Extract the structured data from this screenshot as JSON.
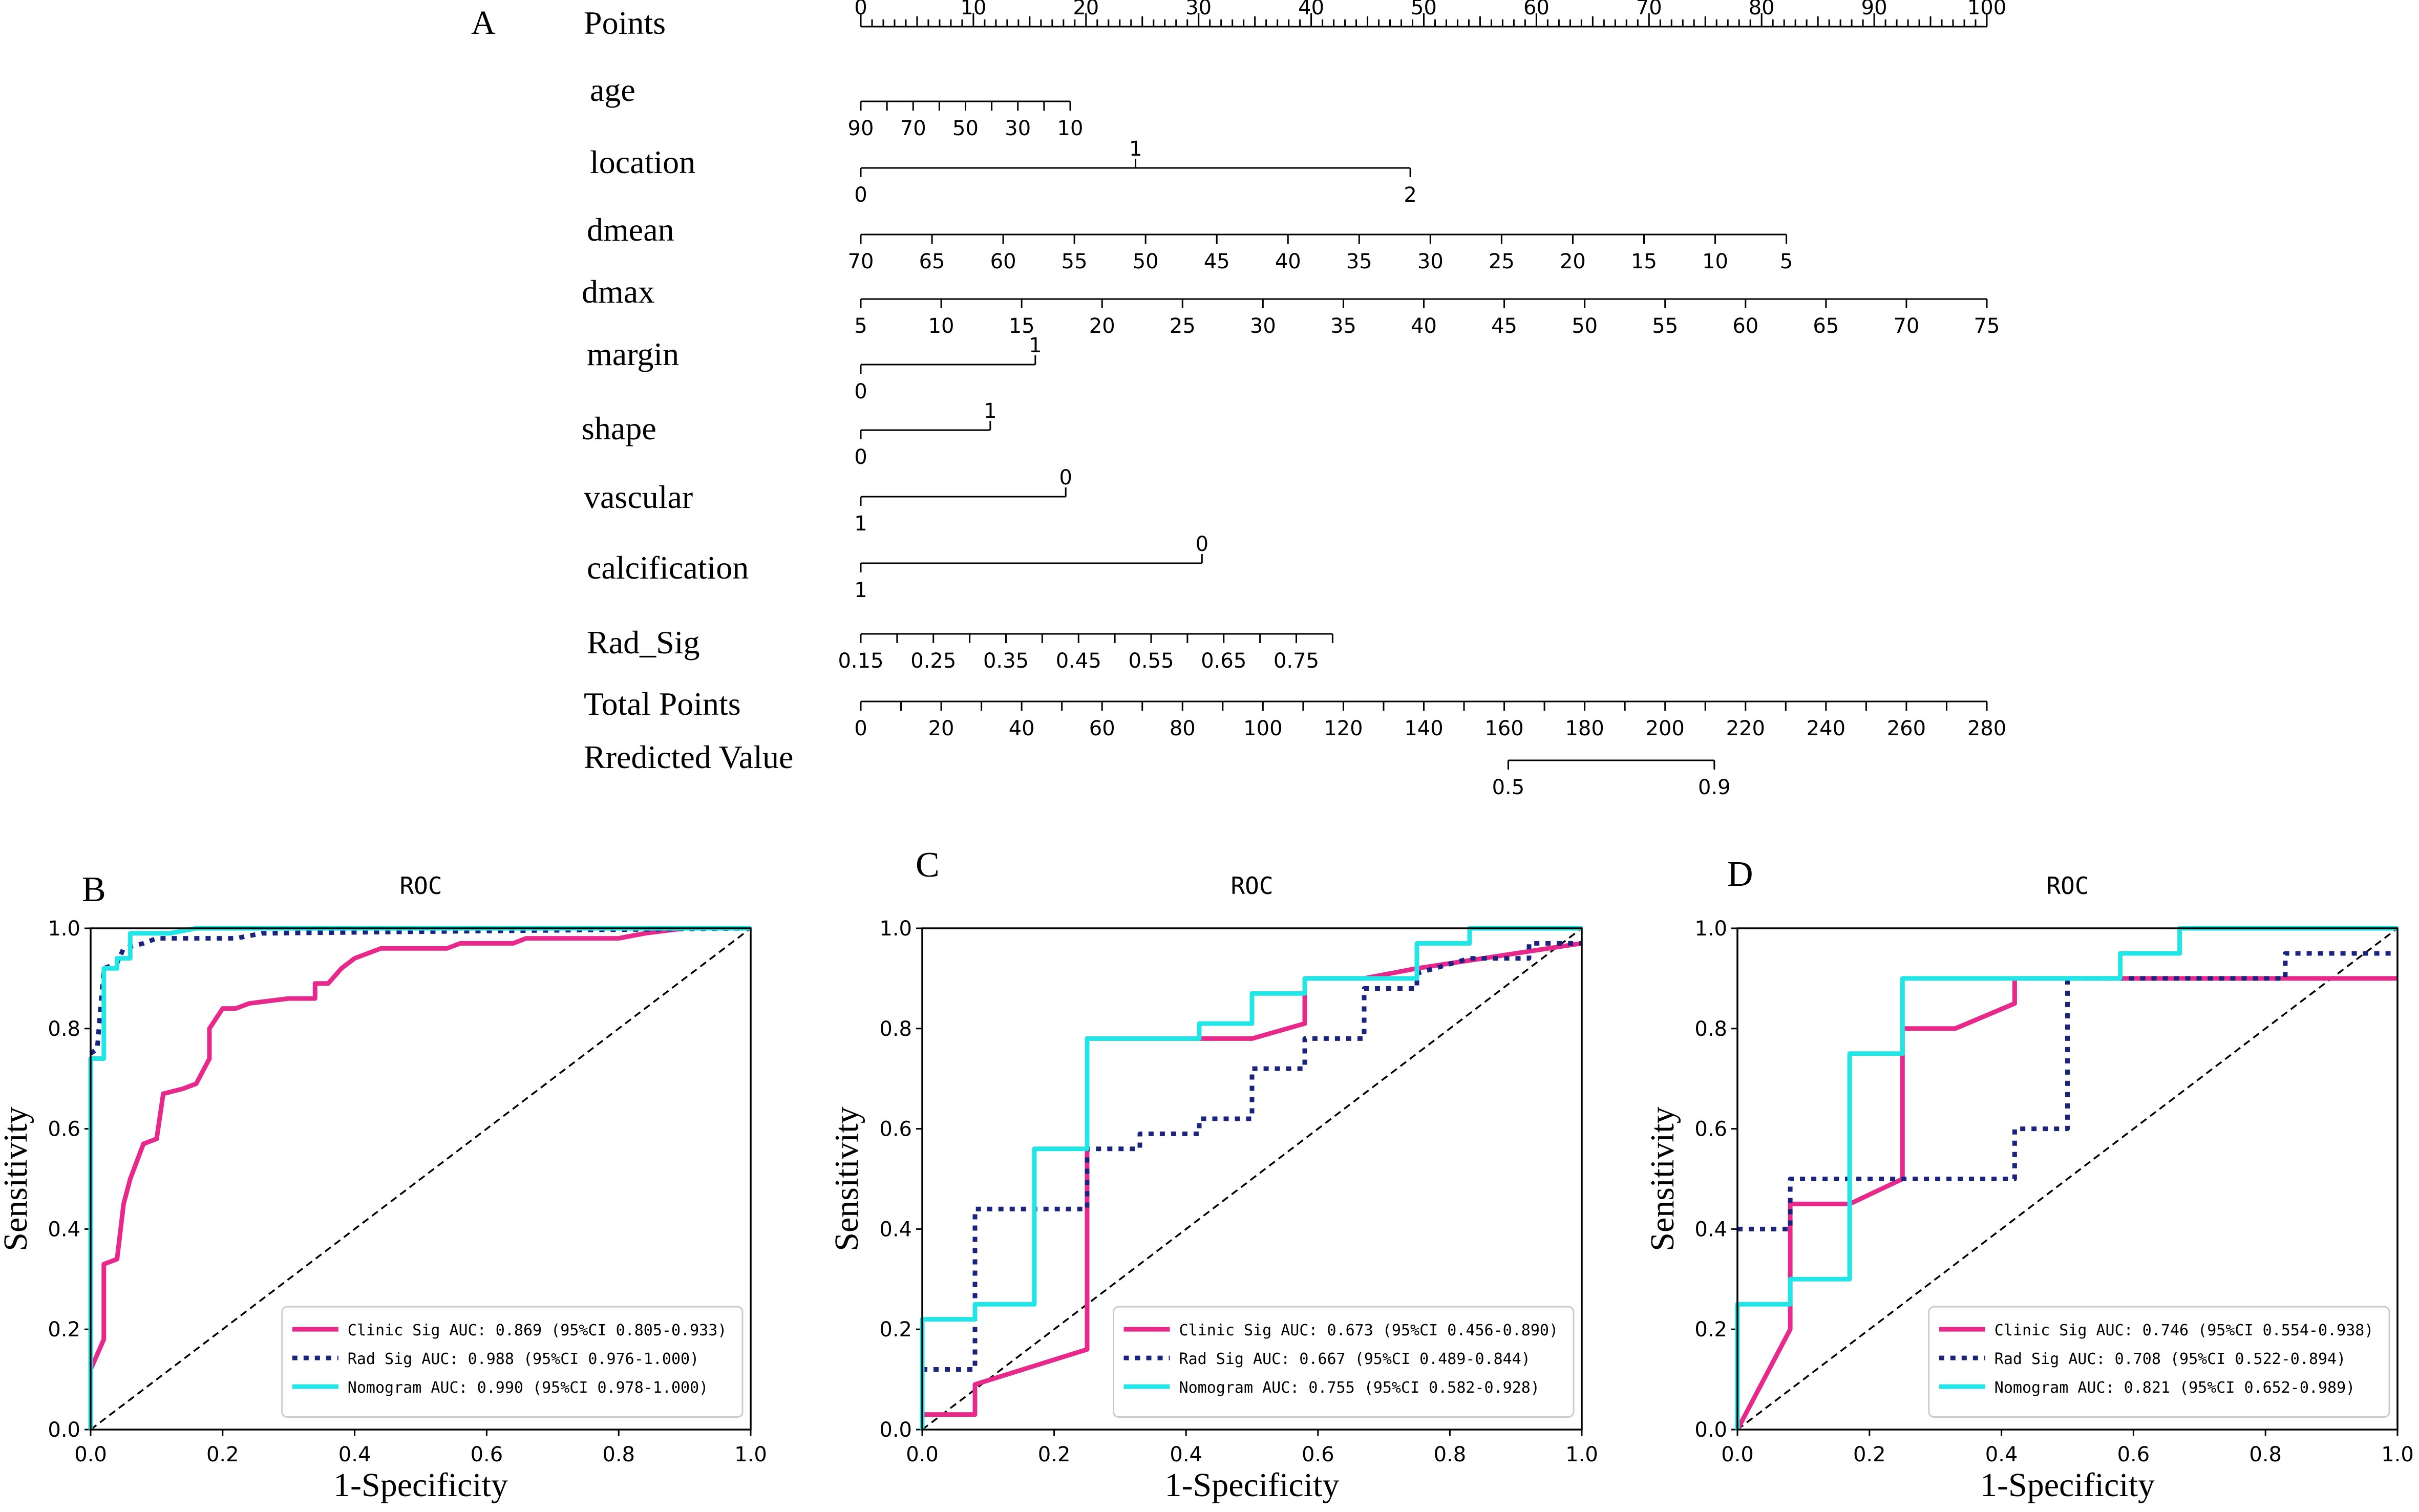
{
  "chart_data": [
    {
      "type": "nomogram",
      "panel_label": "A",
      "rows": [
        {
          "name": "Points",
          "kind": "scale",
          "min": 0,
          "max": 100,
          "major_step": 10,
          "minor_step": 1,
          "labels_above": true,
          "label_values": [
            0,
            10,
            20,
            30,
            40,
            50,
            60,
            70,
            80,
            90,
            100
          ],
          "label_texts": [
            "0",
            "10",
            "20",
            "30",
            "40",
            "50",
            "60",
            "70",
            "80",
            "90",
            "100"
          ]
        },
        {
          "name": "age",
          "kind": "scale",
          "start_points": 0,
          "end_points": 18.6,
          "value_start": 90,
          "value_end": 10,
          "label_values": [
            90,
            70,
            50,
            30,
            10
          ],
          "label_texts": [
            "90",
            "70",
            "50",
            "30",
            "10"
          ],
          "tick_values": [
            90,
            80,
            70,
            60,
            50,
            40,
            30,
            20,
            10
          ]
        },
        {
          "name": "location",
          "kind": "categorical",
          "levels": [
            {
              "label": "0",
              "points": 0,
              "pos": "below"
            },
            {
              "label": "1",
              "points": 24.4,
              "pos": "above"
            },
            {
              "label": "2",
              "points": 48.8,
              "pos": "below"
            }
          ]
        },
        {
          "name": "dmean",
          "kind": "scale",
          "start_points": 0,
          "end_points": 82.2,
          "value_start": 70,
          "value_end": 5,
          "label_values": [
            70,
            65,
            60,
            55,
            50,
            45,
            40,
            35,
            30,
            25,
            20,
            15,
            10,
            5
          ],
          "label_texts": [
            "70",
            "65",
            "60",
            "55",
            "50",
            "45",
            "40",
            "35",
            "30",
            "25",
            "20",
            "15",
            "10",
            "5"
          ]
        },
        {
          "name": "dmax",
          "kind": "scale",
          "start_points": 0,
          "end_points": 100,
          "value_start": 5,
          "value_end": 75,
          "label_values": [
            5,
            10,
            15,
            20,
            25,
            30,
            35,
            40,
            45,
            50,
            55,
            60,
            65,
            70,
            75
          ],
          "label_texts": [
            "5",
            "10",
            "15",
            "20",
            "25",
            "30",
            "35",
            "40",
            "45",
            "50",
            "55",
            "60",
            "65",
            "70",
            "75"
          ]
        },
        {
          "name": "margin",
          "kind": "categorical",
          "levels": [
            {
              "label": "0",
              "points": 0,
              "pos": "below"
            },
            {
              "label": "1",
              "points": 15.5,
              "pos": "above"
            }
          ]
        },
        {
          "name": "shape",
          "kind": "categorical",
          "levels": [
            {
              "label": "0",
              "points": 0,
              "pos": "below"
            },
            {
              "label": "1",
              "points": 11.5,
              "pos": "above"
            }
          ]
        },
        {
          "name": "vascular",
          "kind": "categorical",
          "levels": [
            {
              "label": "1",
              "points": 0,
              "pos": "below"
            },
            {
              "label": "0",
              "points": 18.2,
              "pos": "above"
            }
          ]
        },
        {
          "name": "calcification",
          "kind": "categorical",
          "levels": [
            {
              "label": "1",
              "points": 0,
              "pos": "below"
            },
            {
              "label": "0",
              "points": 30.3,
              "pos": "above"
            }
          ]
        },
        {
          "name": "Rad_Sig",
          "kind": "scale",
          "start_points": 0,
          "end_points": 41.9,
          "value_start": 0.15,
          "value_end": 0.8,
          "label_values": [
            0.15,
            0.25,
            0.35,
            0.45,
            0.55,
            0.65,
            0.75
          ],
          "label_texts": [
            "0.15",
            "0.25",
            "0.35",
            "0.45",
            "0.55",
            "0.65",
            "0.75"
          ],
          "tick_values": [
            0.15,
            0.2,
            0.25,
            0.3,
            0.35,
            0.4,
            0.45,
            0.5,
            0.55,
            0.6,
            0.65,
            0.7,
            0.75,
            0.8
          ]
        },
        {
          "name": "Total Points",
          "kind": "scale",
          "start_points": 0,
          "end_points": 100,
          "value_start": 0,
          "value_end": 280,
          "label_values": [
            0,
            20,
            40,
            60,
            80,
            100,
            120,
            140,
            160,
            180,
            200,
            220,
            240,
            260,
            280
          ],
          "label_texts": [
            "0",
            "20",
            "40",
            "60",
            "80",
            "100",
            "120",
            "140",
            "160",
            "180",
            "200",
            "220",
            "240",
            "260",
            "280"
          ],
          "tick_values": [
            0,
            10,
            20,
            30,
            40,
            50,
            60,
            70,
            80,
            90,
            100,
            110,
            120,
            130,
            140,
            150,
            160,
            170,
            180,
            190,
            200,
            210,
            220,
            230,
            240,
            250,
            260,
            270,
            280
          ]
        },
        {
          "name": "Rredicted Value",
          "kind": "scale",
          "start_points": 57.5,
          "end_points": 75.8,
          "value_start": 0.5,
          "value_end": 0.9,
          "label_values": [
            0.5,
            0.9
          ],
          "label_texts": [
            "0.5",
            "0.9"
          ],
          "tick_values": [
            0.5,
            0.9
          ]
        }
      ]
    },
    {
      "type": "line",
      "panel_label": "B",
      "title": "ROC",
      "xlabel": "1-Specificity",
      "ylabel": "Sensitivity",
      "xlim": [
        0,
        1
      ],
      "ylim": [
        0,
        1
      ],
      "ticks": [
        0,
        0.2,
        0.4,
        0.6,
        0.8,
        1.0
      ],
      "tick_labels": [
        "0.0",
        "0.2",
        "0.4",
        "0.6",
        "0.8",
        "1.0"
      ],
      "series": [
        {
          "name": "Clinic Sig",
          "legend": "Clinic Sig AUC: 0.869 (95%CI 0.805-0.933)",
          "color": "#e8298c",
          "style": "solid",
          "points": [
            [
              0,
              0.12
            ],
            [
              0.01,
              0.15
            ],
            [
              0.02,
              0.18
            ],
            [
              0.02,
              0.33
            ],
            [
              0.04,
              0.34
            ],
            [
              0.05,
              0.45
            ],
            [
              0.06,
              0.5
            ],
            [
              0.08,
              0.57
            ],
            [
              0.1,
              0.58
            ],
            [
              0.11,
              0.67
            ],
            [
              0.14,
              0.68
            ],
            [
              0.16,
              0.69
            ],
            [
              0.18,
              0.74
            ],
            [
              0.18,
              0.8
            ],
            [
              0.2,
              0.84
            ],
            [
              0.22,
              0.84
            ],
            [
              0.24,
              0.85
            ],
            [
              0.3,
              0.86
            ],
            [
              0.34,
              0.86
            ],
            [
              0.34,
              0.89
            ],
            [
              0.36,
              0.89
            ],
            [
              0.38,
              0.92
            ],
            [
              0.4,
              0.94
            ],
            [
              0.44,
              0.96
            ],
            [
              0.54,
              0.96
            ],
            [
              0.56,
              0.97
            ],
            [
              0.64,
              0.97
            ],
            [
              0.66,
              0.98
            ],
            [
              0.8,
              0.98
            ],
            [
              0.84,
              0.99
            ],
            [
              0.9,
              1.0
            ],
            [
              1,
              1
            ]
          ]
        },
        {
          "name": "Rad Sig",
          "legend": "Rad Sig AUC: 0.988 (95%CI 0.976-1.000)",
          "color": "#1a237e",
          "style": "dotted",
          "points": [
            [
              0,
              0.75
            ],
            [
              0.01,
              0.76
            ],
            [
              0.02,
              0.92
            ],
            [
              0.04,
              0.93
            ],
            [
              0.05,
              0.96
            ],
            [
              0.08,
              0.97
            ],
            [
              0.1,
              0.98
            ],
            [
              0.14,
              0.98
            ],
            [
              0.22,
              0.98
            ],
            [
              0.26,
              0.99
            ],
            [
              1,
              1
            ]
          ]
        },
        {
          "name": "Nomogram",
          "legend": "Nomogram AUC: 0.990 (95%CI 0.978-1.000)",
          "color": "#22e5e5",
          "style": "solid",
          "points": [
            [
              0,
              0
            ],
            [
              0,
              0.74
            ],
            [
              0.02,
              0.74
            ],
            [
              0.02,
              0.92
            ],
            [
              0.04,
              0.92
            ],
            [
              0.04,
              0.94
            ],
            [
              0.06,
              0.94
            ],
            [
              0.06,
              0.99
            ],
            [
              0.12,
              0.99
            ],
            [
              0.16,
              1.0
            ],
            [
              1,
              1
            ]
          ]
        }
      ]
    },
    {
      "type": "line",
      "panel_label": "C",
      "title": "ROC",
      "xlabel": "1-Specificity",
      "ylabel": "Sensitivity",
      "xlim": [
        0,
        1
      ],
      "ylim": [
        0,
        1
      ],
      "ticks": [
        0,
        0.2,
        0.4,
        0.6,
        0.8,
        1.0
      ],
      "tick_labels": [
        "0.0",
        "0.2",
        "0.4",
        "0.6",
        "0.8",
        "1.0"
      ],
      "series": [
        {
          "name": "Clinic Sig",
          "legend": "Clinic Sig AUC: 0.673 (95%CI 0.456-0.890)",
          "color": "#e8298c",
          "style": "solid",
          "points": [
            [
              0,
              0
            ],
            [
              0,
              0.03
            ],
            [
              0.08,
              0.03
            ],
            [
              0.08,
              0.09
            ],
            [
              0.25,
              0.16
            ],
            [
              0.25,
              0.78
            ],
            [
              0.5,
              0.78
            ],
            [
              0.58,
              0.81
            ],
            [
              0.58,
              0.9
            ],
            [
              0.67,
              0.9
            ],
            [
              0.75,
              0.92
            ],
            [
              1,
              0.97
            ]
          ]
        },
        {
          "name": "Rad Sig",
          "legend": "Rad Sig AUC: 0.667 (95%CI 0.489-0.844)",
          "color": "#1a237e",
          "style": "dotted",
          "points": [
            [
              0,
              0.12
            ],
            [
              0.08,
              0.12
            ],
            [
              0.08,
              0.44
            ],
            [
              0.25,
              0.44
            ],
            [
              0.25,
              0.56
            ],
            [
              0.33,
              0.56
            ],
            [
              0.33,
              0.59
            ],
            [
              0.42,
              0.59
            ],
            [
              0.42,
              0.62
            ],
            [
              0.5,
              0.62
            ],
            [
              0.5,
              0.72
            ],
            [
              0.58,
              0.72
            ],
            [
              0.58,
              0.78
            ],
            [
              0.67,
              0.78
            ],
            [
              0.67,
              0.88
            ],
            [
              0.75,
              0.88
            ],
            [
              0.75,
              0.91
            ],
            [
              0.83,
              0.94
            ],
            [
              0.92,
              0.94
            ],
            [
              0.92,
              0.97
            ],
            [
              1,
              0.97
            ]
          ]
        },
        {
          "name": "Nomogram",
          "legend": "Nomogram AUC: 0.755 (95%CI 0.582-0.928)",
          "color": "#22e5e5",
          "style": "solid",
          "points": [
            [
              0,
              0
            ],
            [
              0,
              0.22
            ],
            [
              0.08,
              0.22
            ],
            [
              0.08,
              0.25
            ],
            [
              0.17,
              0.25
            ],
            [
              0.17,
              0.56
            ],
            [
              0.25,
              0.56
            ],
            [
              0.25,
              0.78
            ],
            [
              0.42,
              0.78
            ],
            [
              0.42,
              0.81
            ],
            [
              0.5,
              0.81
            ],
            [
              0.5,
              0.87
            ],
            [
              0.58,
              0.87
            ],
            [
              0.58,
              0.9
            ],
            [
              0.75,
              0.9
            ],
            [
              0.75,
              0.97
            ],
            [
              0.83,
              0.97
            ],
            [
              0.83,
              1.0
            ],
            [
              1,
              1.0
            ]
          ]
        }
      ]
    },
    {
      "type": "line",
      "panel_label": "D",
      "title": "ROC",
      "xlabel": "1-Specificity",
      "ylabel": "Sensitivity",
      "xlim": [
        0,
        1
      ],
      "ylim": [
        0,
        1
      ],
      "ticks": [
        0,
        0.2,
        0.4,
        0.6,
        0.8,
        1.0
      ],
      "tick_labels": [
        "0.0",
        "0.2",
        "0.4",
        "0.6",
        "0.8",
        "1.0"
      ],
      "series": [
        {
          "name": "Clinic Sig",
          "legend": "Clinic Sig AUC: 0.746 (95%CI 0.554-0.938)",
          "color": "#e8298c",
          "style": "solid",
          "points": [
            [
              0,
              0
            ],
            [
              0.08,
              0.2
            ],
            [
              0.08,
              0.45
            ],
            [
              0.17,
              0.45
            ],
            [
              0.25,
              0.5
            ],
            [
              0.25,
              0.8
            ],
            [
              0.33,
              0.8
            ],
            [
              0.42,
              0.85
            ],
            [
              0.42,
              0.9
            ],
            [
              1,
              0.9
            ]
          ]
        },
        {
          "name": "Rad Sig",
          "legend": "Rad Sig AUC: 0.708 (95%CI 0.522-0.894)",
          "color": "#1a237e",
          "style": "dotted",
          "points": [
            [
              0,
              0.4
            ],
            [
              0.08,
              0.4
            ],
            [
              0.08,
              0.5
            ],
            [
              0.42,
              0.5
            ],
            [
              0.42,
              0.6
            ],
            [
              0.5,
              0.6
            ],
            [
              0.5,
              0.9
            ],
            [
              0.83,
              0.9
            ],
            [
              0.83,
              0.95
            ],
            [
              1,
              0.95
            ]
          ]
        },
        {
          "name": "Nomogram",
          "legend": "Nomogram AUC: 0.821 (95%CI 0.652-0.989)",
          "color": "#22e5e5",
          "style": "solid",
          "points": [
            [
              0,
              0
            ],
            [
              0,
              0.25
            ],
            [
              0.08,
              0.25
            ],
            [
              0.08,
              0.3
            ],
            [
              0.17,
              0.3
            ],
            [
              0.17,
              0.75
            ],
            [
              0.25,
              0.75
            ],
            [
              0.25,
              0.9
            ],
            [
              0.58,
              0.9
            ],
            [
              0.58,
              0.95
            ],
            [
              0.67,
              0.95
            ],
            [
              0.67,
              1.0
            ],
            [
              1,
              1.0
            ]
          ]
        }
      ]
    }
  ]
}
